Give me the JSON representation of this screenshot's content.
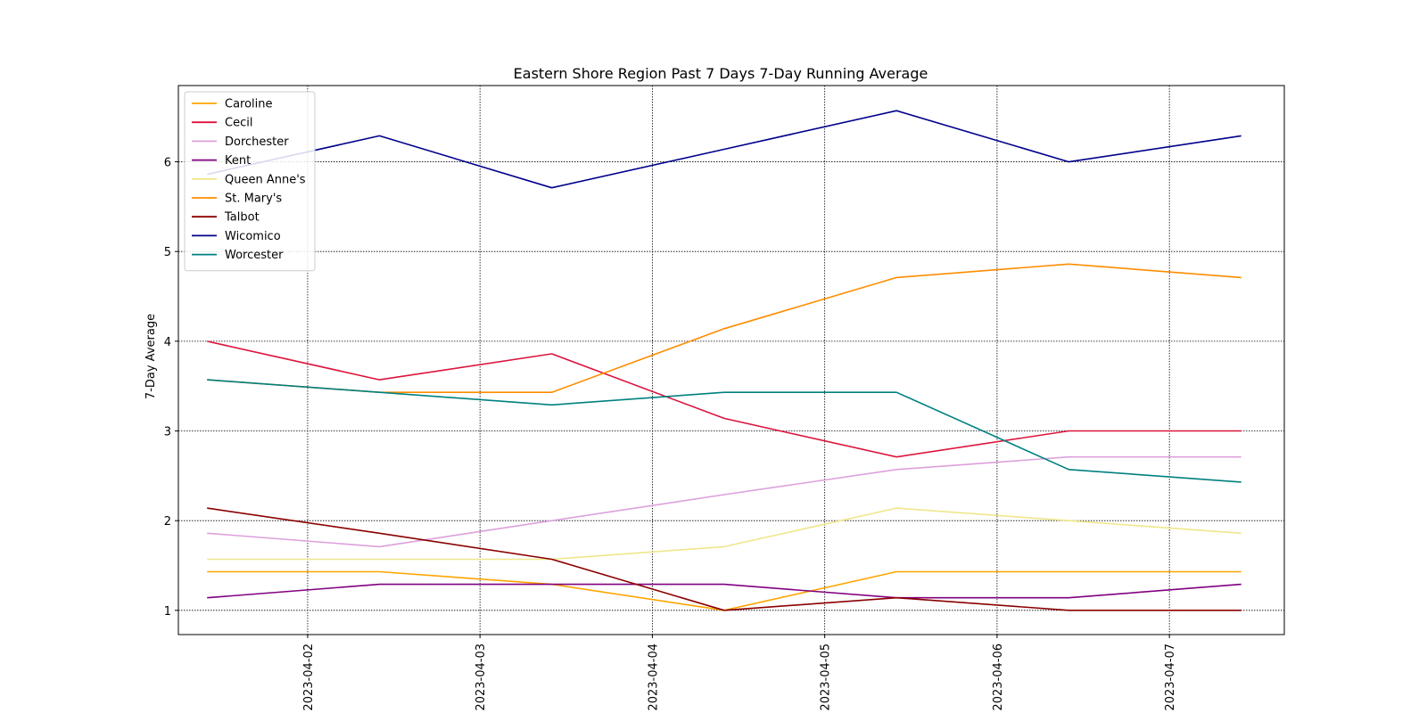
{
  "chart_data": {
    "type": "line",
    "title": "Eastern Shore Region Past 7 Days 7-Day Running Average",
    "xlabel": "",
    "ylabel": "7-Day Average",
    "x": [
      "2023-04-01 10:00",
      "2023-04-02 10:00",
      "2023-04-03 10:00",
      "2023-04-04 10:00",
      "2023-04-05 10:00",
      "2023-04-06 10:00",
      "2023-04-07 10:00"
    ],
    "xlim": [
      "2023-04-01 06:00",
      "2023-04-07 16:00"
    ],
    "xticks": [
      "2023-04-02",
      "2023-04-03",
      "2023-04-04",
      "2023-04-05",
      "2023-04-06",
      "2023-04-07"
    ],
    "ylim": [
      0.73,
      6.85
    ],
    "yticks": [
      1,
      2,
      3,
      4,
      5,
      6
    ],
    "grid": true,
    "legend_position": "upper left",
    "series": [
      {
        "name": "Caroline",
        "color": "#ffa500",
        "values": [
          1.43,
          1.43,
          1.29,
          1.0,
          1.43,
          1.43,
          1.43
        ]
      },
      {
        "name": "Cecil",
        "color": "#dc143c",
        "values": [
          4.0,
          3.57,
          3.86,
          3.14,
          2.71,
          3.0,
          3.0
        ]
      },
      {
        "name": "Dorchester",
        "color": "#dda0dd",
        "values": [
          1.86,
          1.71,
          2.0,
          2.29,
          2.57,
          2.71,
          2.71
        ]
      },
      {
        "name": "Kent",
        "color": "#800080",
        "values": [
          1.14,
          1.29,
          1.29,
          1.29,
          1.14,
          1.14,
          1.29
        ]
      },
      {
        "name": "Queen Anne's",
        "color": "#f0e68c",
        "values": [
          1.57,
          1.57,
          1.57,
          1.71,
          2.14,
          2.0,
          1.86
        ]
      },
      {
        "name": "St. Mary's",
        "color": "#ff8c00",
        "values": [
          3.57,
          3.43,
          3.43,
          4.14,
          4.71,
          4.86,
          4.71
        ]
      },
      {
        "name": "Talbot",
        "color": "#8b0000",
        "values": [
          2.14,
          1.86,
          1.57,
          1.0,
          1.14,
          1.0,
          1.0
        ]
      },
      {
        "name": "Wicomico",
        "color": "#00008b",
        "values": [
          5.86,
          6.29,
          5.71,
          6.14,
          6.57,
          6.0,
          6.29
        ]
      },
      {
        "name": "Worcester",
        "color": "#008080",
        "values": [
          3.57,
          3.43,
          3.29,
          3.43,
          3.43,
          2.57,
          2.43
        ]
      }
    ]
  }
}
